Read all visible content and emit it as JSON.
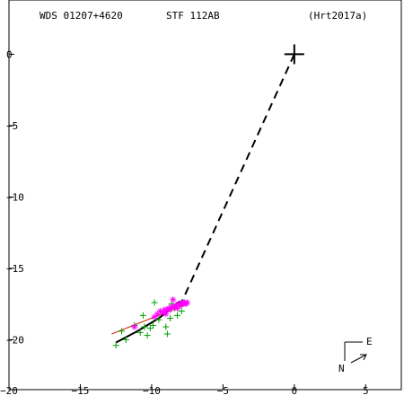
{
  "header": {
    "left": "WDS 01207+4620",
    "center": "STF 112AB",
    "right": "(Hrt2017a)"
  },
  "compass": {
    "north": "N",
    "east": "E"
  },
  "colors": {
    "frame": "#000000",
    "observed_micrometer": "#00a000",
    "observed_interferometric": "#ff00ff",
    "orbit_fit": "#000000",
    "linear_fit": "#cc2200",
    "primary": "#000000"
  },
  "chart_data": {
    "type": "scatter",
    "title": "STF 112AB",
    "xlabel": "",
    "ylabel": "",
    "xlim": [
      -20,
      7.5
    ],
    "ylim": [
      -23.5,
      3.8
    ],
    "x_ticks": [
      {
        "value": -20,
        "label": "−20"
      },
      {
        "value": -15,
        "label": "−15"
      },
      {
        "value": -10,
        "label": "−10"
      },
      {
        "value": -5,
        "label": "−5"
      },
      {
        "value": 0,
        "label": "0"
      },
      {
        "value": 5,
        "label": "5"
      }
    ],
    "y_ticks": [
      {
        "value": 0,
        "label": "0"
      },
      {
        "value": -5,
        "label": "−5"
      },
      {
        "value": -10,
        "label": "−10"
      },
      {
        "value": -15,
        "label": "−15"
      },
      {
        "value": -20,
        "label": "−20"
      }
    ],
    "primary": {
      "x": 0,
      "y": 0
    },
    "connector": {
      "from": [
        0,
        0
      ],
      "to": [
        -8.0,
        -17.6
      ],
      "style": "dashed"
    },
    "orbit_arc": [
      [
        -12.5,
        -20.2
      ],
      [
        -11.0,
        -19.4
      ],
      [
        -9.5,
        -18.5
      ],
      [
        -8.0,
        -17.3
      ]
    ],
    "linear_fit": [
      [
        -12.8,
        -19.6
      ],
      [
        -7.5,
        -17.5
      ]
    ],
    "series": [
      {
        "marker": "plus",
        "color": "#00a000",
        "points": [
          [
            -12.5,
            -20.4
          ],
          [
            -12.1,
            -19.4
          ],
          [
            -11.8,
            -20.0
          ],
          [
            -11.2,
            -19.0
          ],
          [
            -10.8,
            -19.5
          ],
          [
            -10.6,
            -18.3
          ],
          [
            -10.5,
            -19.1
          ],
          [
            -10.3,
            -19.7
          ],
          [
            -10.1,
            -19.2
          ],
          [
            -9.9,
            -19.0
          ],
          [
            -9.8,
            -17.4
          ],
          [
            -9.5,
            -18.6
          ],
          [
            -9.2,
            -18.1
          ],
          [
            -9.0,
            -19.1
          ],
          [
            -8.9,
            -19.6
          ],
          [
            -8.7,
            -18.5
          ],
          [
            -8.4,
            -17.8
          ],
          [
            -8.2,
            -18.3
          ],
          [
            -8.6,
            -17.5
          ],
          [
            -7.9,
            -18.0
          ]
        ]
      },
      {
        "marker": "asterisk",
        "color": "#ff00ff",
        "points": [
          [
            -11.2,
            -19.1
          ],
          [
            -9.8,
            -18.4
          ],
          [
            -9.6,
            -18.2
          ],
          [
            -9.4,
            -18.0
          ],
          [
            -9.2,
            -18.1
          ],
          [
            -9.1,
            -17.9
          ],
          [
            -9.0,
            -18.2
          ],
          [
            -8.9,
            -17.9
          ],
          [
            -8.8,
            -17.8
          ],
          [
            -8.7,
            -17.9
          ],
          [
            -8.6,
            -17.7
          ],
          [
            -8.5,
            -17.2
          ],
          [
            -8.4,
            -17.7
          ],
          [
            -8.3,
            -17.6
          ],
          [
            -8.2,
            -17.8
          ],
          [
            -8.1,
            -17.5
          ],
          [
            -8.0,
            -17.6
          ],
          [
            -7.9,
            -17.4
          ],
          [
            -7.8,
            -17.5
          ],
          [
            -7.7,
            -17.4
          ],
          [
            -7.6,
            -17.5
          ],
          [
            -7.5,
            -17.4
          ]
        ]
      }
    ],
    "grid": false,
    "legend": "none"
  }
}
